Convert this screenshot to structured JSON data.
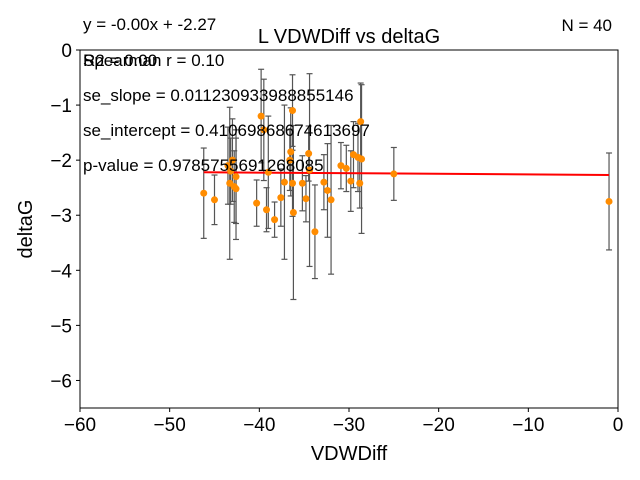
{
  "chart_data": {
    "type": "scatter",
    "title": "L VDWDiff vs deltaG",
    "xlabel": "VDWDiff",
    "ylabel": "deltaG",
    "xlim": [
      -60,
      0
    ],
    "ylim": [
      -6.5,
      0
    ],
    "xticks": [
      -60,
      -50,
      -40,
      -30,
      -20,
      -10,
      0
    ],
    "xtick_labels": [
      "−60",
      "−50",
      "−40",
      "−30",
      "−20",
      "−10",
      "0"
    ],
    "yticks": [
      0,
      -1,
      -2,
      -3,
      -4,
      -5,
      -6
    ],
    "ytick_labels": [
      "0",
      "−1",
      "−2",
      "−3",
      "−4",
      "−5",
      "−6"
    ],
    "grid": false,
    "annotations": {
      "equation": "y = -0.00x + -2.27",
      "r2": "R2 = 0.00",
      "spearman": "Spearman r = 0.10",
      "se_slope": "se_slope = 0.011230933988855146",
      "se_intercept": "se_intercept = 0.4106986867461369​7",
      "p_value": "p-value = 0.9785755691268085",
      "n": "N = 40"
    },
    "fit_line": {
      "slope": -0.0011,
      "intercept": -2.27,
      "x_range": [
        -46.2,
        -1.0
      ],
      "color": "#ff0000"
    },
    "point_color": "#ff8c00",
    "errorbar_color": "#555555",
    "points": [
      {
        "x": -46.2,
        "y": -2.6,
        "err": 0.82
      },
      {
        "x": -45.0,
        "y": -2.72,
        "err": 0.45
      },
      {
        "x": -43.5,
        "y": -2.1,
        "err": 0.7
      },
      {
        "x": -43.3,
        "y": -2.42,
        "err": 1.38
      },
      {
        "x": -43.2,
        "y": -2.2,
        "err": 0.6
      },
      {
        "x": -43.0,
        "y": -2.0,
        "err": 0.75
      },
      {
        "x": -42.8,
        "y": -2.48,
        "err": 0.65
      },
      {
        "x": -42.6,
        "y": -2.52,
        "err": 0.92
      },
      {
        "x": -42.6,
        "y": -2.3,
        "err": 0.85
      },
      {
        "x": -40.3,
        "y": -2.78,
        "err": 0.42
      },
      {
        "x": -39.8,
        "y": -1.2,
        "err": 0.85
      },
      {
        "x": -39.5,
        "y": -1.45,
        "err": 0.92
      },
      {
        "x": -39.2,
        "y": -2.9,
        "err": 0.4
      },
      {
        "x": -39.0,
        "y": -2.22,
        "err": 1.02
      },
      {
        "x": -38.3,
        "y": -3.08,
        "err": 0.32
      },
      {
        "x": -37.6,
        "y": -2.68,
        "err": 0.52
      },
      {
        "x": -37.2,
        "y": -2.4,
        "err": 1.4
      },
      {
        "x": -36.6,
        "y": -2.0,
        "err": 0.55
      },
      {
        "x": -36.5,
        "y": -1.85,
        "err": 0.8
      },
      {
        "x": -36.3,
        "y": -1.1,
        "err": 0.65
      },
      {
        "x": -36.3,
        "y": -2.42,
        "err": 0.6
      },
      {
        "x": -36.2,
        "y": -2.95,
        "err": 1.58
      },
      {
        "x": -35.2,
        "y": -2.42,
        "err": 0.5
      },
      {
        "x": -34.8,
        "y": -2.7,
        "err": 0.42
      },
      {
        "x": -34.5,
        "y": -1.88,
        "err": 0.5
      },
      {
        "x": -34.4,
        "y": -2.18,
        "err": 1.75
      },
      {
        "x": -33.8,
        "y": -3.3,
        "err": 0.85
      },
      {
        "x": -32.8,
        "y": -2.4,
        "err": 0.5
      },
      {
        "x": -32.4,
        "y": -2.55,
        "err": 0.85
      },
      {
        "x": -32.0,
        "y": -2.72,
        "err": 1.35
      },
      {
        "x": -30.9,
        "y": -2.1,
        "err": 0.42
      },
      {
        "x": -30.3,
        "y": -2.15,
        "err": 0.42
      },
      {
        "x": -29.8,
        "y": -2.38,
        "err": 0.55
      },
      {
        "x": -29.5,
        "y": -1.9,
        "err": 0.6
      },
      {
        "x": -29.0,
        "y": -1.95,
        "err": 0.62
      },
      {
        "x": -28.8,
        "y": -2.42,
        "err": 0.45
      },
      {
        "x": -28.7,
        "y": -1.3,
        "err": 0.7
      },
      {
        "x": -28.6,
        "y": -1.98,
        "err": 1.35
      },
      {
        "x": -25.0,
        "y": -2.25,
        "err": 0.48
      },
      {
        "x": -1.0,
        "y": -2.75,
        "err": 0.88
      }
    ]
  }
}
